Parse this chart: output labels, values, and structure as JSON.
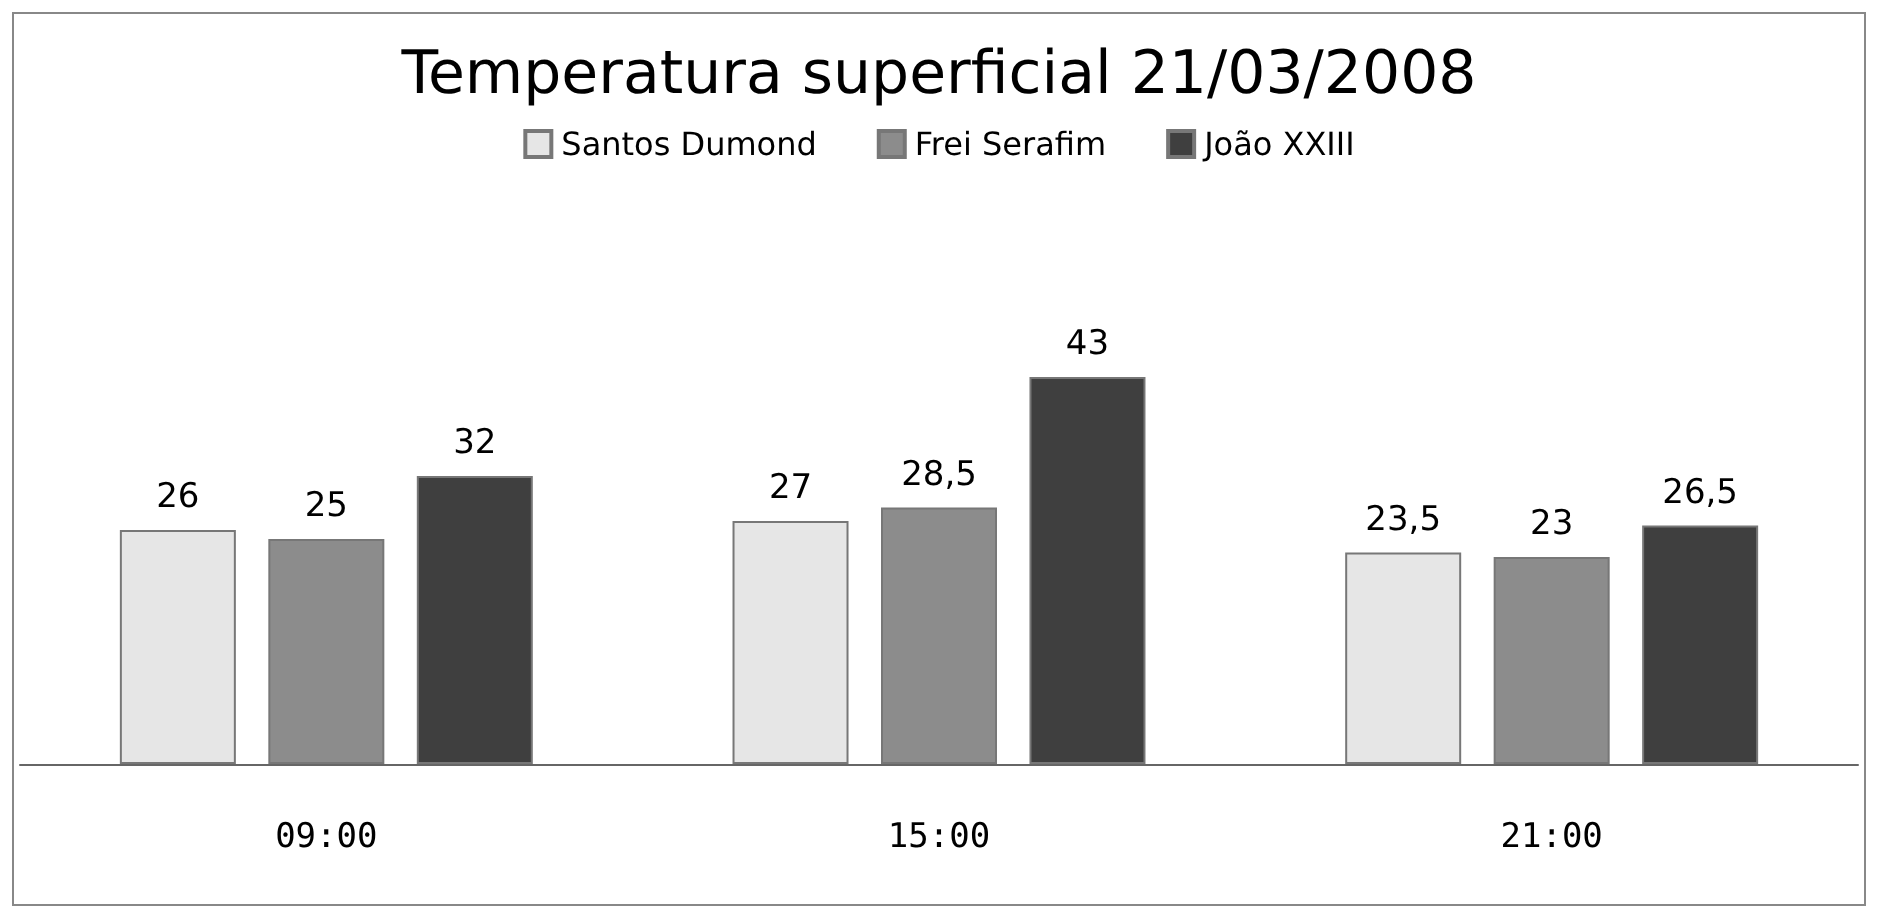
{
  "chart_data": {
    "type": "bar",
    "title": "Temperatura superficial 21/03/2008",
    "categories": [
      "09:00",
      "15:00",
      "21:00"
    ],
    "series": [
      {
        "name": "Santos Dumond",
        "color": "#e6e6e6",
        "values": [
          26,
          27,
          23.5
        ],
        "value_labels": [
          "26",
          "27",
          "23,5"
        ]
      },
      {
        "name": "Frei Serafim",
        "color": "#8c8c8c",
        "values": [
          25,
          28.5,
          23
        ],
        "value_labels": [
          "25",
          "28,5",
          "23"
        ]
      },
      {
        "name": "João XXIII",
        "color": "#3f3f3f",
        "values": [
          32,
          43,
          26.5
        ],
        "value_labels": [
          "32",
          "43",
          "26,5"
        ]
      }
    ],
    "legend": "top"
  }
}
